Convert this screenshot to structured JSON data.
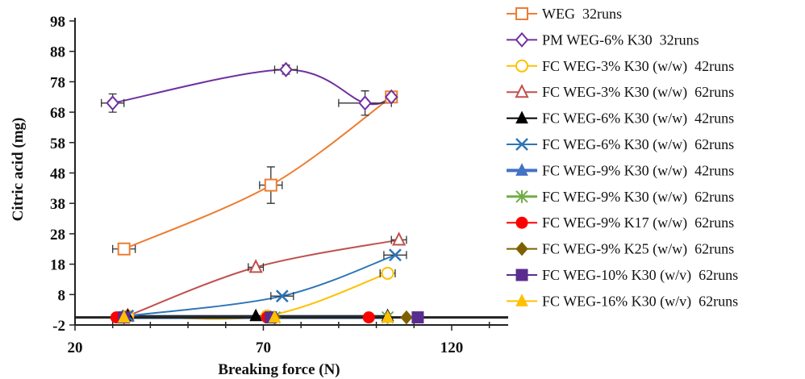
{
  "chart_data": {
    "type": "scatter",
    "title": "",
    "xlabel": "Breaking force (N)",
    "ylabel": "Citric acid (mg)",
    "xlim": [
      20,
      135
    ],
    "ylim": [
      -2,
      98
    ],
    "x_ticks": [
      "20",
      "70",
      "120"
    ],
    "y_ticks": [
      "-2",
      "8",
      "18",
      "28",
      "38",
      "48",
      "58",
      "68",
      "78",
      "88",
      "98"
    ],
    "legend_position": "right",
    "lines_smoothed": true,
    "series": [
      {
        "name": "WEG  32runs",
        "color": "#ED7D31",
        "marker": "square-open",
        "line_width": 2,
        "points": [
          {
            "x": 33,
            "y": 23,
            "xerr": 3,
            "yerr": 0
          },
          {
            "x": 72,
            "y": 44,
            "xerr": 3,
            "yerr": 6
          },
          {
            "x": 104,
            "y": 73,
            "xerr": 0,
            "yerr": 0
          }
        ]
      },
      {
        "name": "PM WEG-6% K30  32runs",
        "color": "#7030A0",
        "marker": "diamond-open",
        "line_width": 2,
        "points": [
          {
            "x": 30,
            "y": 71,
            "xerr": 3,
            "yerr": 3
          },
          {
            "x": 76,
            "y": 82,
            "xerr": 3,
            "yerr": 1.5
          },
          {
            "x": 97,
            "y": 71,
            "xerr": 7,
            "yerr": 4
          },
          {
            "x": 104,
            "y": 73,
            "xerr": 0,
            "yerr": 0
          }
        ]
      },
      {
        "name": "FC WEG-3% K30 (w/w)  42runs",
        "color": "#FFC000",
        "marker": "circle-open",
        "line_width": 2,
        "points": [
          {
            "x": 34,
            "y": 1,
            "xerr": 0,
            "yerr": 0
          },
          {
            "x": 71,
            "y": 1,
            "xerr": 0,
            "yerr": 0
          },
          {
            "x": 103,
            "y": 15,
            "xerr": 2,
            "yerr": 0
          }
        ]
      },
      {
        "name": "FC WEG-3% K30 (w/w)  62runs",
        "color": "#C0504D",
        "marker": "triangle-open",
        "line_width": 2,
        "points": [
          {
            "x": 34,
            "y": 1,
            "xerr": 0,
            "yerr": 0
          },
          {
            "x": 68,
            "y": 17,
            "xerr": 2,
            "yerr": 0
          },
          {
            "x": 106,
            "y": 26,
            "xerr": 2,
            "yerr": 0
          }
        ]
      },
      {
        "name": "FC WEG-6% K30 (w/w)  42runs",
        "color": "#000000",
        "marker": "triangle",
        "line_width": 2,
        "points": [
          {
            "x": 34,
            "y": 1,
            "xerr": 0,
            "yerr": 0
          },
          {
            "x": 68,
            "y": 1,
            "xerr": 0,
            "yerr": 0
          },
          {
            "x": 103,
            "y": 1,
            "xerr": 0,
            "yerr": 0
          }
        ]
      },
      {
        "name": "FC WEG-6% K30 (w/w)  62runs",
        "color": "#2E75B6",
        "marker": "x",
        "line_width": 2,
        "points": [
          {
            "x": 34,
            "y": 1,
            "xerr": 0,
            "yerr": 0
          },
          {
            "x": 75,
            "y": 7.5,
            "xerr": 3,
            "yerr": 0
          },
          {
            "x": 105,
            "y": 21,
            "xerr": 3,
            "yerr": 0
          }
        ]
      },
      {
        "name": "FC WEG-9% K30 (w/w)  42runs",
        "color": "#4472C4",
        "marker": "triangle",
        "line_width": 4,
        "points": [
          {
            "x": 33,
            "y": 0.5,
            "xerr": 0,
            "yerr": 0
          },
          {
            "x": 72,
            "y": 0.5,
            "xerr": 0,
            "yerr": 0
          },
          {
            "x": 103,
            "y": 0.5,
            "xerr": 0,
            "yerr": 0
          }
        ]
      },
      {
        "name": "FC WEG-9% K30 (w/w)  62runs",
        "color": "#70AD47",
        "marker": "asterisk",
        "line_width": 3,
        "points": [
          {
            "x": 33,
            "y": 0.5,
            "xerr": 0,
            "yerr": 0
          },
          {
            "x": 73,
            "y": 0.5,
            "xerr": 0,
            "yerr": 0
          },
          {
            "x": 103,
            "y": 0.5,
            "xerr": 0,
            "yerr": 0
          }
        ]
      },
      {
        "name": "FC WEG-9% K17 (w/w)  62runs",
        "color": "#FF0000",
        "marker": "circle",
        "line_width": 2,
        "points": [
          {
            "x": 31,
            "y": 0.5,
            "xerr": 0,
            "yerr": 0
          },
          {
            "x": 71,
            "y": 0.5,
            "xerr": 0,
            "yerr": 0
          },
          {
            "x": 98,
            "y": 0.5,
            "xerr": 0,
            "yerr": 0
          }
        ]
      },
      {
        "name": "FC WEG-9% K25 (w/w)  62runs",
        "color": "#7F6000",
        "marker": "diamond",
        "line_width": 2,
        "points": [
          {
            "x": 33,
            "y": 0.5,
            "xerr": 0,
            "yerr": 0
          },
          {
            "x": 73,
            "y": 0.5,
            "xerr": 0,
            "yerr": 0
          },
          {
            "x": 108,
            "y": 0.5,
            "xerr": 0,
            "yerr": 0
          }
        ]
      },
      {
        "name": "FC WEG-10% K30 (w/v)  62runs",
        "color": "#5B2C8F",
        "marker": "square",
        "line_width": 2,
        "points": [
          {
            "x": 33,
            "y": 0.5,
            "xerr": 0,
            "yerr": 0
          },
          {
            "x": 72,
            "y": 0.5,
            "xerr": 0,
            "yerr": 0
          },
          {
            "x": 111,
            "y": 0.5,
            "xerr": 0,
            "yerr": 0
          }
        ]
      },
      {
        "name": "FC WEG-16% K30 (w/v)  62runs",
        "color": "#FFC000",
        "marker": "triangle",
        "line_width": 2,
        "points": [
          {
            "x": 33,
            "y": 0.5,
            "xerr": 0,
            "yerr": 0
          },
          {
            "x": 73,
            "y": 0.5,
            "xerr": 0,
            "yerr": 0
          },
          {
            "x": 103,
            "y": 0.5,
            "xerr": 0,
            "yerr": 0
          }
        ]
      }
    ]
  }
}
